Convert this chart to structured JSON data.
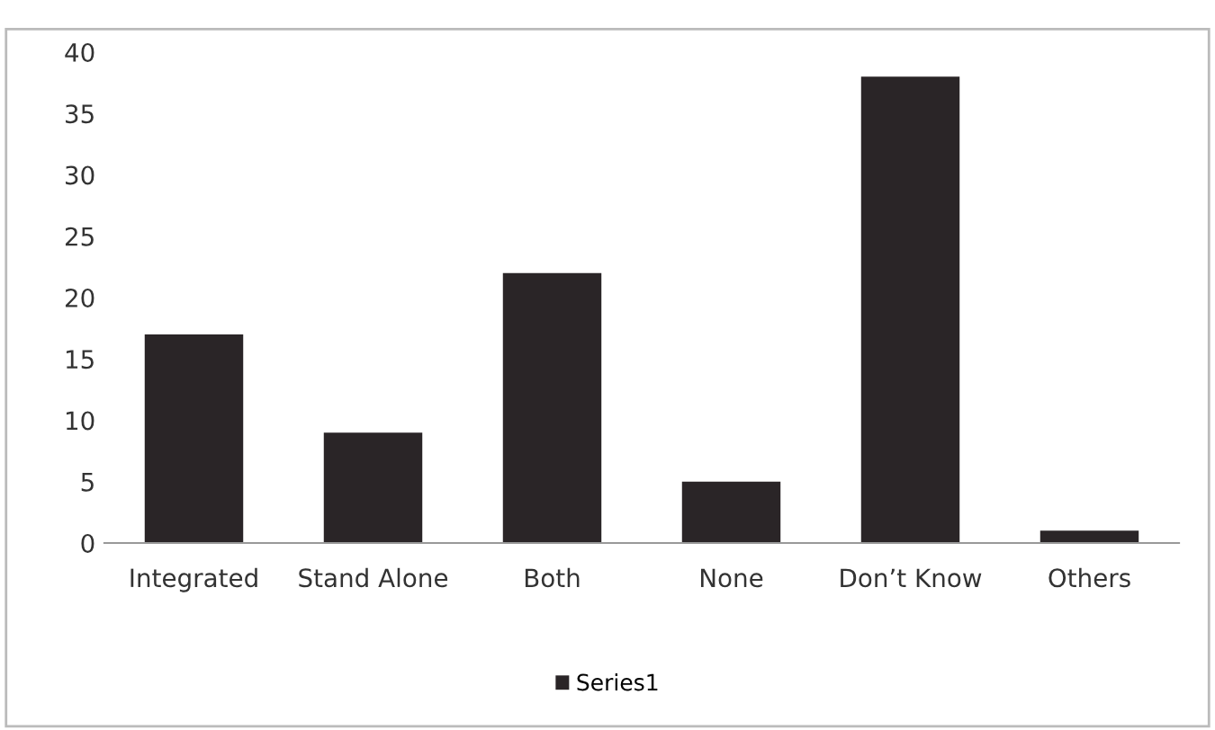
{
  "chart_data": {
    "type": "bar",
    "categories": [
      "Integrated",
      "Stand Alone",
      "Both",
      "None",
      "Don’t Know",
      "Others"
    ],
    "series": [
      {
        "name": "Series1",
        "color": "#2a2527",
        "values": [
          17,
          9,
          22,
          5,
          38,
          1
        ]
      }
    ],
    "ylim": [
      0,
      40
    ],
    "yticks": [
      0,
      5,
      10,
      15,
      20,
      25,
      30,
      35,
      40
    ],
    "grid": false,
    "legend": "bottom"
  }
}
